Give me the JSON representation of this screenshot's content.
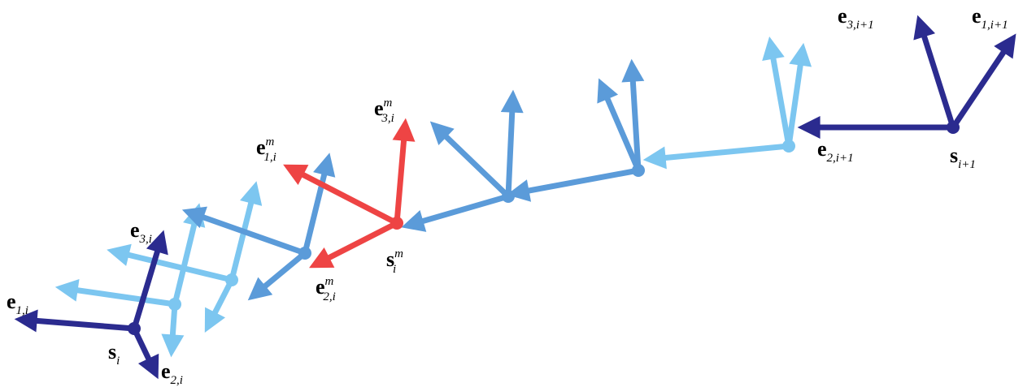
{
  "labels": [
    {
      "base": "e",
      "sub": "3,i+1"
    },
    {
      "base": "e",
      "sub": "1,i+1"
    },
    {
      "base": "e",
      "sub": "2,i+1"
    },
    {
      "base": "s",
      "sub": "i+1"
    },
    {
      "base": "e",
      "sub": "3,i",
      "sup": "m"
    },
    {
      "base": "e",
      "sub": "1,i",
      "sup": "m"
    },
    {
      "base": "e",
      "sub": "2,i",
      "sup": "m"
    },
    {
      "base": "s",
      "sub": "i",
      "sup": "m"
    },
    {
      "base": "e",
      "sub": "3,i"
    },
    {
      "base": "e",
      "sub": "1,i"
    },
    {
      "base": "s",
      "sub": "i"
    },
    {
      "base": "e",
      "sub": "2,i"
    }
  ]
}
